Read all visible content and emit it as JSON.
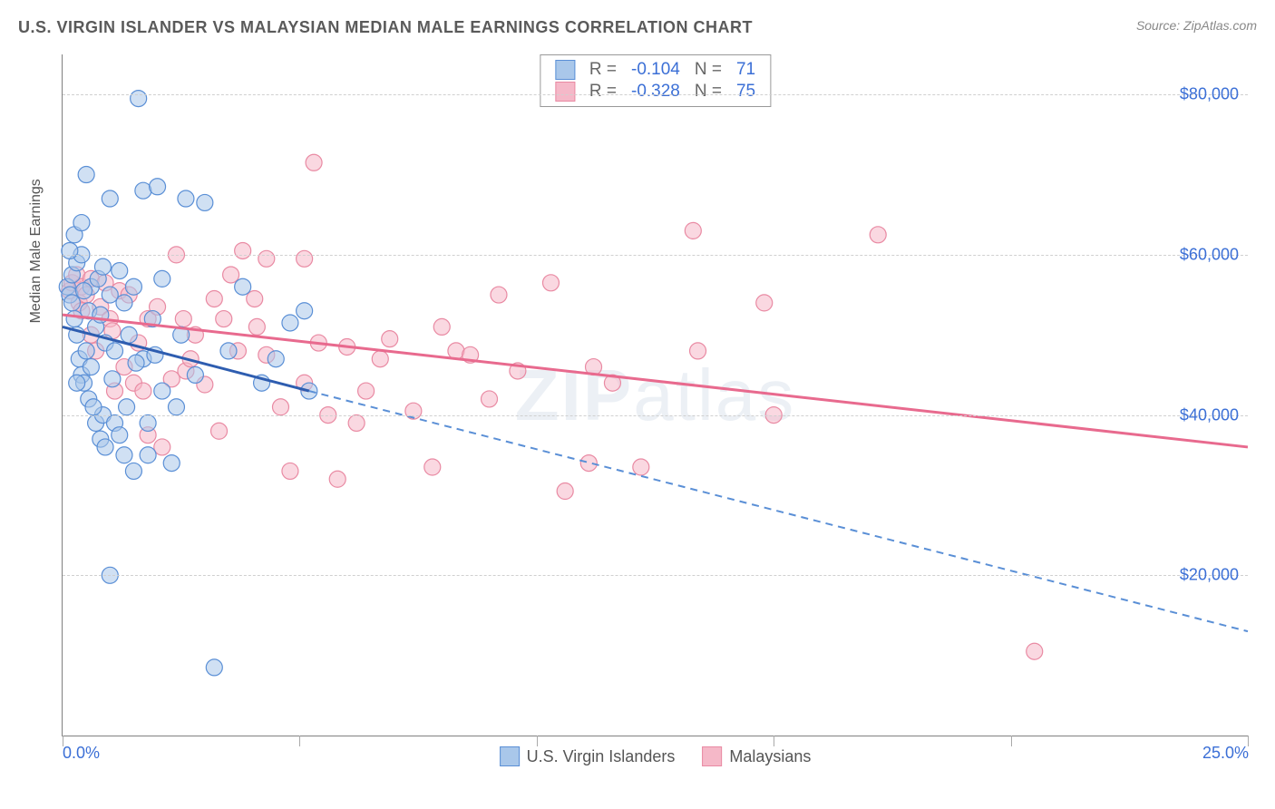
{
  "chart": {
    "type": "scatter-with-regression",
    "title": "U.S. VIRGIN ISLANDER VS MALAYSIAN MEDIAN MALE EARNINGS CORRELATION CHART",
    "source_label": "Source: ZipAtlas.com",
    "y_axis_title": "Median Male Earnings",
    "watermark_bold": "ZIP",
    "watermark_light": "atlas",
    "background_color": "#ffffff",
    "xlim": [
      0,
      25
    ],
    "ylim": [
      0,
      85000
    ],
    "x_ticks_at": [
      0,
      5,
      10,
      15,
      20,
      25
    ],
    "x_tick_labels": {
      "0": "0.0%",
      "25": "25.0%"
    },
    "y_gridlines": [
      20000,
      40000,
      60000,
      80000
    ],
    "y_tick_labels": {
      "20000": "$20,000",
      "40000": "$40,000",
      "60000": "$60,000",
      "80000": "$80,000"
    },
    "grid_color": "#d0d0d0",
    "axis_label_color": "#3b6fd6",
    "series": {
      "usvi": {
        "label": "U.S. Virgin Islanders",
        "fill_color": "#a9c7ea",
        "stroke_color": "#5a8fd6",
        "fill_opacity": 0.55,
        "marker_radius": 9,
        "R": "-0.104",
        "N": "71",
        "regression": {
          "solid": {
            "x1": 0,
            "y1": 51000,
            "x2": 5.2,
            "y2": 43000,
            "width": 3
          },
          "dashed": {
            "x1": 5.2,
            "y1": 43000,
            "x2": 25,
            "y2": 13000,
            "dash": "8,6",
            "width": 2
          }
        },
        "points": [
          [
            0.1,
            56000
          ],
          [
            0.15,
            55000
          ],
          [
            0.2,
            57500
          ],
          [
            0.2,
            54000
          ],
          [
            0.25,
            52000
          ],
          [
            0.25,
            62500
          ],
          [
            0.3,
            50000
          ],
          [
            0.3,
            59000
          ],
          [
            0.35,
            47000
          ],
          [
            0.4,
            64000
          ],
          [
            0.4,
            60000
          ],
          [
            0.4,
            45000
          ],
          [
            0.45,
            44000
          ],
          [
            0.5,
            70000
          ],
          [
            0.5,
            48000
          ],
          [
            0.55,
            42000
          ],
          [
            0.55,
            53000
          ],
          [
            0.6,
            56000
          ],
          [
            0.6,
            46000
          ],
          [
            0.7,
            39000
          ],
          [
            0.7,
            51000
          ],
          [
            0.75,
            57000
          ],
          [
            0.8,
            37000
          ],
          [
            0.8,
            52500
          ],
          [
            0.85,
            40000
          ],
          [
            0.9,
            49000
          ],
          [
            0.9,
            36000
          ],
          [
            1.0,
            67000
          ],
          [
            1.0,
            55000
          ],
          [
            1.0,
            20000
          ],
          [
            1.1,
            39000
          ],
          [
            1.1,
            48000
          ],
          [
            1.2,
            58000
          ],
          [
            1.2,
            37500
          ],
          [
            1.3,
            54000
          ],
          [
            1.3,
            35000
          ],
          [
            1.4,
            50000
          ],
          [
            1.5,
            56000
          ],
          [
            1.5,
            33000
          ],
          [
            1.6,
            79500
          ],
          [
            1.7,
            68000
          ],
          [
            1.7,
            47000
          ],
          [
            1.8,
            39000
          ],
          [
            1.8,
            35000
          ],
          [
            1.9,
            52000
          ],
          [
            2.0,
            68500
          ],
          [
            2.1,
            57000
          ],
          [
            2.1,
            43000
          ],
          [
            2.3,
            34000
          ],
          [
            2.5,
            50000
          ],
          [
            2.6,
            67000
          ],
          [
            2.8,
            45000
          ],
          [
            3.0,
            66500
          ],
          [
            3.2,
            8500
          ],
          [
            3.5,
            48000
          ],
          [
            3.8,
            56000
          ],
          [
            4.2,
            44000
          ],
          [
            4.5,
            47000
          ],
          [
            4.8,
            51500
          ],
          [
            5.1,
            53000
          ],
          [
            5.2,
            43000
          ],
          [
            0.15,
            60500
          ],
          [
            0.3,
            44000
          ],
          [
            0.45,
            55500
          ],
          [
            0.65,
            41000
          ],
          [
            0.85,
            58500
          ],
          [
            1.05,
            44500
          ],
          [
            1.35,
            41000
          ],
          [
            1.55,
            46500
          ],
          [
            1.95,
            47500
          ],
          [
            2.4,
            41000
          ]
        ]
      },
      "malaysian": {
        "label": "Malaysians",
        "fill_color": "#f5b8c8",
        "stroke_color": "#e98aa3",
        "fill_opacity": 0.55,
        "marker_radius": 9,
        "R": "-0.328",
        "N": "75",
        "regression": {
          "solid": {
            "x1": 0,
            "y1": 52500,
            "x2": 25,
            "y2": 36000,
            "width": 3
          }
        },
        "points": [
          [
            0.15,
            55500
          ],
          [
            0.2,
            56500
          ],
          [
            0.3,
            57500
          ],
          [
            0.35,
            54000
          ],
          [
            0.4,
            56000
          ],
          [
            0.4,
            53000
          ],
          [
            0.5,
            55000
          ],
          [
            0.6,
            50000
          ],
          [
            0.6,
            57000
          ],
          [
            0.7,
            48000
          ],
          [
            0.8,
            53500
          ],
          [
            0.9,
            56500
          ],
          [
            1.0,
            52000
          ],
          [
            1.1,
            43000
          ],
          [
            1.2,
            55500
          ],
          [
            1.3,
            46000
          ],
          [
            1.4,
            55000
          ],
          [
            1.5,
            44000
          ],
          [
            1.6,
            49000
          ],
          [
            1.7,
            43000
          ],
          [
            1.8,
            52000
          ],
          [
            1.8,
            37500
          ],
          [
            2.0,
            53500
          ],
          [
            2.1,
            36000
          ],
          [
            2.3,
            44500
          ],
          [
            2.4,
            60000
          ],
          [
            2.6,
            45500
          ],
          [
            2.7,
            47000
          ],
          [
            2.8,
            50000
          ],
          [
            3.0,
            43800
          ],
          [
            3.2,
            54500
          ],
          [
            3.3,
            38000
          ],
          [
            3.4,
            52000
          ],
          [
            3.7,
            48000
          ],
          [
            3.8,
            60500
          ],
          [
            4.1,
            51000
          ],
          [
            4.3,
            59500
          ],
          [
            4.3,
            47500
          ],
          [
            4.6,
            41000
          ],
          [
            4.8,
            33000
          ],
          [
            5.1,
            59500
          ],
          [
            5.1,
            44000
          ],
          [
            5.3,
            71500
          ],
          [
            5.4,
            49000
          ],
          [
            5.6,
            40000
          ],
          [
            5.8,
            32000
          ],
          [
            6.0,
            48500
          ],
          [
            6.4,
            43000
          ],
          [
            6.7,
            47000
          ],
          [
            6.9,
            49500
          ],
          [
            7.4,
            40500
          ],
          [
            7.8,
            33500
          ],
          [
            8.3,
            48000
          ],
          [
            8.6,
            47500
          ],
          [
            9.2,
            55000
          ],
          [
            9.6,
            45500
          ],
          [
            10.3,
            56500
          ],
          [
            10.6,
            30500
          ],
          [
            11.1,
            34000
          ],
          [
            11.2,
            46000
          ],
          [
            11.6,
            44000
          ],
          [
            12.2,
            33500
          ],
          [
            13.3,
            63000
          ],
          [
            13.4,
            48000
          ],
          [
            14.8,
            54000
          ],
          [
            15.0,
            40000
          ],
          [
            17.2,
            62500
          ],
          [
            20.5,
            10500
          ],
          [
            1.05,
            50500
          ],
          [
            2.55,
            52000
          ],
          [
            3.55,
            57500
          ],
          [
            4.05,
            54500
          ],
          [
            6.2,
            39000
          ],
          [
            8.0,
            51000
          ],
          [
            9.0,
            42000
          ]
        ]
      }
    }
  }
}
